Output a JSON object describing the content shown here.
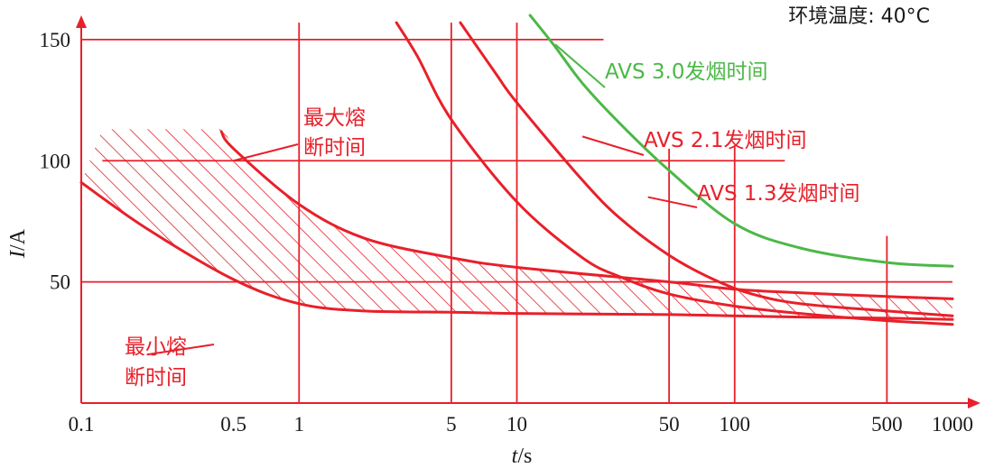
{
  "chart_data": {
    "type": "line",
    "title": "",
    "condition_label": "环境温度: 40°C",
    "xlabel": {
      "var": "t",
      "unit": "/s"
    },
    "ylabel": {
      "var": "I",
      "unit": "/A"
    },
    "x_scale": "log",
    "xlim": [
      0.1,
      1000
    ],
    "ylim": [
      0,
      160
    ],
    "x_ticks": [
      0.1,
      0.5,
      1,
      5,
      10,
      50,
      100,
      500,
      1000
    ],
    "x_tick_labels": [
      "0.1",
      "0.5",
      "1",
      "5",
      "10",
      "50",
      "100",
      "500",
      "1000"
    ],
    "y_ticks": [
      50,
      100,
      150
    ],
    "y_tick_labels": [
      "50",
      "100",
      "150"
    ],
    "gridlines": {
      "horizontal": [
        {
          "y": 150,
          "x_from": 0.1,
          "x_to": 25
        },
        {
          "y": 100,
          "x_from": 0.125,
          "x_to": 170
        },
        {
          "y": 50,
          "x_from": 0.1,
          "x_to": 1000
        }
      ],
      "vertical": [
        {
          "x": 1,
          "y_to": 157
        },
        {
          "x": 5,
          "y_to": 157
        },
        {
          "x": 10,
          "y_to": 157
        },
        {
          "x": 50,
          "y_to": 105
        },
        {
          "x": 100,
          "y_to": 106
        },
        {
          "x": 500,
          "y_to": 69
        }
      ]
    },
    "band": {
      "label": "",
      "upper": [
        [
          0.125,
          113
        ],
        [
          0.45,
          113
        ],
        [
          0.5,
          105
        ],
        [
          1,
          82
        ],
        [
          2,
          68
        ],
        [
          5,
          60
        ],
        [
          10,
          56
        ],
        [
          50,
          50
        ],
        [
          100,
          47
        ],
        [
          200,
          45.5
        ],
        [
          500,
          44
        ],
        [
          1000,
          43
        ]
      ],
      "lower": [
        [
          0.1,
          91
        ],
        [
          0.2,
          72
        ],
        [
          0.5,
          51
        ],
        [
          1,
          41
        ],
        [
          2,
          38
        ],
        [
          5,
          37.5
        ],
        [
          10,
          37
        ],
        [
          50,
          36.5
        ],
        [
          100,
          36
        ],
        [
          200,
          35.5
        ],
        [
          500,
          35
        ],
        [
          1000,
          34.5
        ]
      ]
    },
    "series": [
      {
        "name": "最大熔断时间",
        "color": "#e8202a",
        "points": [
          [
            0.44,
            112
          ],
          [
            0.5,
            105
          ],
          [
            1,
            82
          ],
          [
            2,
            68
          ],
          [
            5,
            60
          ],
          [
            10,
            56
          ],
          [
            50,
            50
          ],
          [
            100,
            47
          ],
          [
            200,
            45.5
          ],
          [
            500,
            44
          ],
          [
            1000,
            43
          ]
        ]
      },
      {
        "name": "最小熔断时间",
        "color": "#e8202a",
        "points": [
          [
            0.1,
            91
          ],
          [
            0.2,
            72
          ],
          [
            0.5,
            51
          ],
          [
            1,
            41
          ],
          [
            2,
            38
          ],
          [
            5,
            37.5
          ],
          [
            10,
            37
          ],
          [
            50,
            36.5
          ],
          [
            100,
            36
          ],
          [
            200,
            35.5
          ],
          [
            500,
            35
          ],
          [
            1000,
            34.5
          ]
        ]
      },
      {
        "name": "AVS 1.3发烟时间",
        "color": "#e8202a",
        "points": [
          [
            2.8,
            157
          ],
          [
            3.5,
            143
          ],
          [
            5,
            117
          ],
          [
            10,
            83
          ],
          [
            20,
            60
          ],
          [
            30,
            52
          ],
          [
            50,
            45
          ],
          [
            100,
            40
          ],
          [
            200,
            37
          ],
          [
            500,
            34
          ],
          [
            1000,
            32.5
          ]
        ]
      },
      {
        "name": "AVS 2.1发烟时间",
        "color": "#e8202a",
        "points": [
          [
            5.5,
            157
          ],
          [
            8,
            136
          ],
          [
            10,
            124
          ],
          [
            20,
            92
          ],
          [
            30,
            76
          ],
          [
            50,
            61
          ],
          [
            80,
            51
          ],
          [
            120,
            45
          ],
          [
            200,
            41
          ],
          [
            500,
            38
          ],
          [
            1000,
            36
          ]
        ]
      },
      {
        "name": "AVS 3.0发烟时间",
        "color": "#4cb848",
        "points": [
          [
            11.5,
            160
          ],
          [
            15,
            147
          ],
          [
            20,
            132
          ],
          [
            30,
            115
          ],
          [
            50,
            96
          ],
          [
            100,
            74
          ],
          [
            200,
            64
          ],
          [
            500,
            58
          ],
          [
            1000,
            56.5
          ]
        ]
      }
    ],
    "annotations": [
      {
        "text": "AVS 3.0发烟时间",
        "color": "#4cb848",
        "anchor_x": 15,
        "anchor_y": 148
      },
      {
        "text": "AVS 2.1发烟时间",
        "color": "#e8202a",
        "anchor_x": 20,
        "anchor_y": 110
      },
      {
        "text": "AVS 1.3发烟时间",
        "color": "#e8202a",
        "anchor_x": 40,
        "anchor_y": 85
      },
      {
        "text": "最大熔断时间",
        "color": "#e8202a",
        "anchor_x": 0.5,
        "anchor_y": 100,
        "lines": [
          "最大熔",
          "断时间"
        ]
      },
      {
        "text": "最小熔断时间",
        "color": "#e8202a",
        "anchor_x": 0.2,
        "anchor_y": 20,
        "lines": [
          "最小熔",
          "断时间"
        ]
      }
    ],
    "grid": true,
    "legend": "none"
  }
}
